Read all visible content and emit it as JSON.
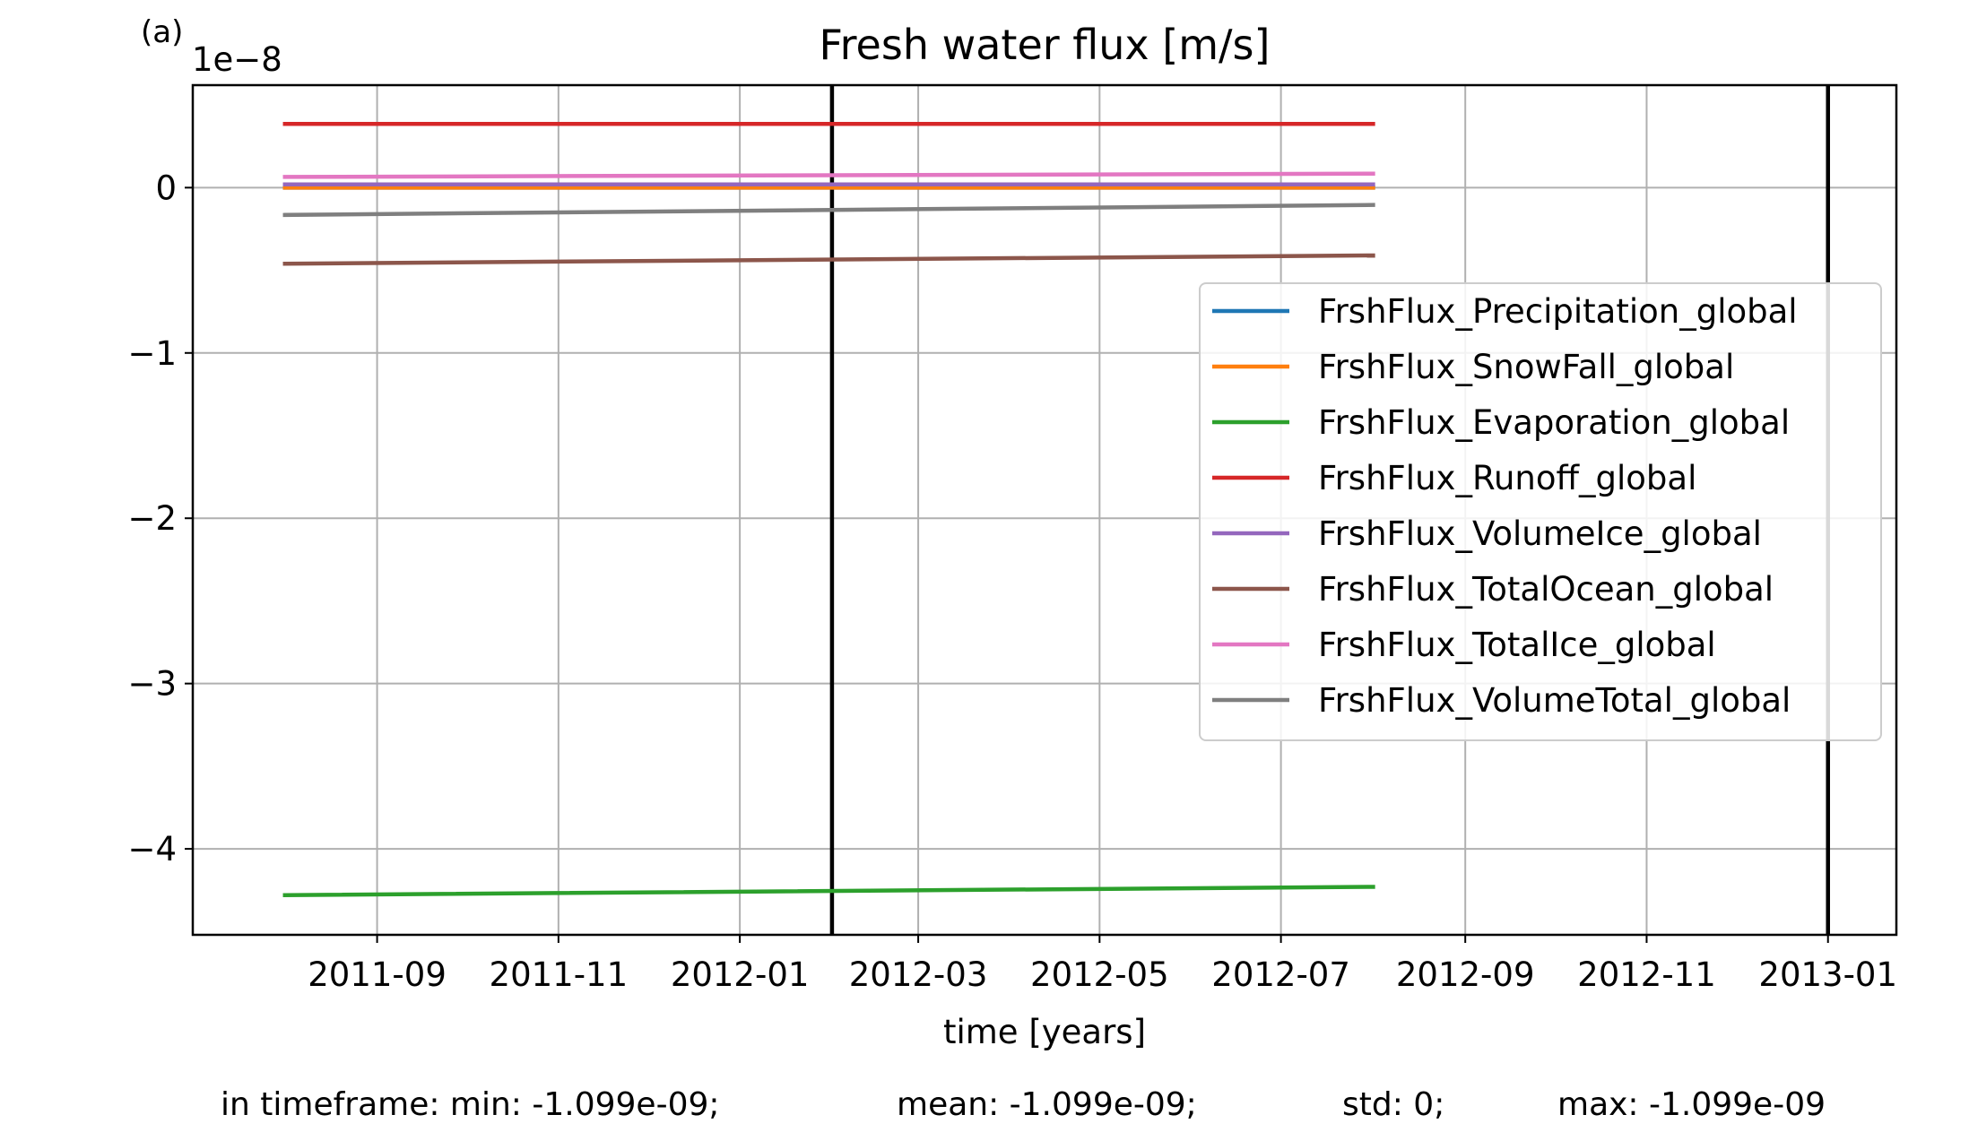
{
  "panel_label": "(a)",
  "stats": {
    "min": "in timeframe: min: -1.099e-09;",
    "mean": "mean: -1.099e-09;",
    "std": "std: 0;",
    "max": "max: -1.099e-09"
  },
  "chart_data": {
    "type": "line",
    "title": "Fresh water flux [m/s]",
    "xlabel": "time [years]",
    "ylabel": "",
    "y_offset_label": "1e−8",
    "x_unit": "date",
    "xlim": [
      "2011-07-01",
      "2013-01-24"
    ],
    "ylim": [
      -4.52,
      0.62
    ],
    "x_ticks": [
      "2011-09-01",
      "2011-11-01",
      "2012-01-01",
      "2012-03-01",
      "2012-05-01",
      "2012-07-01",
      "2012-09-01",
      "2012-11-01",
      "2013-01-01"
    ],
    "x_tick_labels": [
      "2011-09",
      "2011-11",
      "2012-01",
      "2012-03",
      "2012-05",
      "2012-07",
      "2012-09",
      "2012-11",
      "2013-01"
    ],
    "y_ticks": [
      0,
      -1,
      -2,
      -3,
      -4
    ],
    "y_tick_labels": [
      "0",
      "−1",
      "−2",
      "−3",
      "−4"
    ],
    "grid": true,
    "legend_position": "center-right",
    "vertical_lines": [
      "2012-02-01",
      "2013-01-01"
    ],
    "vertical_line_color": "#000000",
    "series": [
      {
        "name": "FrshFlux_Precipitation_global",
        "color": "#1f77b4",
        "x": [
          "2011-08-01",
          "2012-08-01"
        ],
        "y": [
          0.0,
          0.0
        ]
      },
      {
        "name": "FrshFlux_SnowFall_global",
        "color": "#ff7f0e",
        "x": [
          "2011-08-01",
          "2012-08-01"
        ],
        "y": [
          0.0,
          0.0
        ]
      },
      {
        "name": "FrshFlux_Evaporation_global",
        "color": "#2ca02c",
        "x": [
          "2011-08-01",
          "2012-08-01"
        ],
        "y": [
          -4.28,
          -4.23
        ]
      },
      {
        "name": "FrshFlux_Runoff_global",
        "color": "#d62728",
        "x": [
          "2011-08-01",
          "2012-08-01"
        ],
        "y": [
          0.385,
          0.385
        ]
      },
      {
        "name": "FrshFlux_VolumeIce_global",
        "color": "#9467bd",
        "x": [
          "2011-08-01",
          "2012-08-01"
        ],
        "y": [
          0.02,
          0.02
        ]
      },
      {
        "name": "FrshFlux_TotalOcean_global",
        "color": "#8c564b",
        "x": [
          "2011-08-01",
          "2012-08-01"
        ],
        "y": [
          -0.46,
          -0.41
        ]
      },
      {
        "name": "FrshFlux_TotalIce_global",
        "color": "#e377c2",
        "x": [
          "2011-08-01",
          "2012-08-01"
        ],
        "y": [
          0.065,
          0.085
        ]
      },
      {
        "name": "FrshFlux_VolumeTotal_global",
        "color": "#7f7f7f",
        "x": [
          "2011-08-01",
          "2012-08-01"
        ],
        "y": [
          -0.165,
          -0.105
        ]
      }
    ]
  }
}
